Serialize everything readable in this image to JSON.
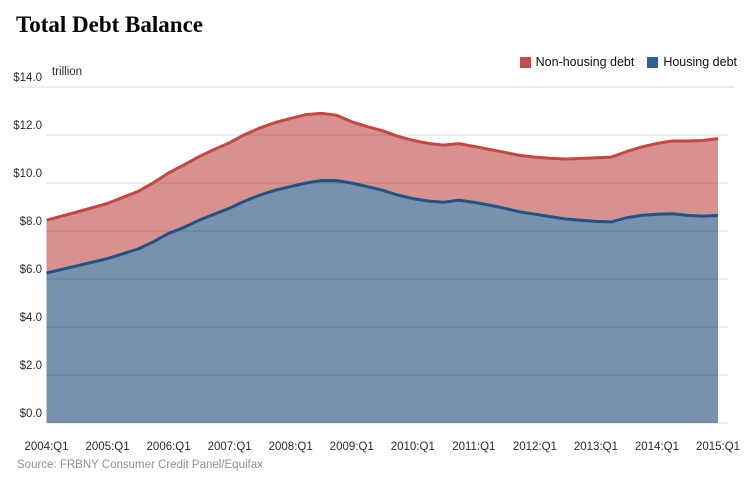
{
  "title": "Total Debt Balance",
  "unit_label": "trillion",
  "source": "Source: FRBNY Consumer Credit Panel/Equifax",
  "legend": [
    {
      "label": "Non-housing debt",
      "color": "#c0504d"
    },
    {
      "label": "Housing debt",
      "color": "#2f5f93"
    }
  ],
  "colors": {
    "nonhousing_fill": "#d9918f",
    "nonhousing_stroke": "#bc4a45",
    "housing_fill": "#7791ae",
    "housing_stroke": "#27507c",
    "gridline": "#d9d9d9"
  },
  "y_axis": {
    "tick_labels": [
      "$14.0",
      "$12.0",
      "$10.0",
      "$8.0",
      "$6.0",
      "$4.0",
      "$2.0",
      "$0.0"
    ],
    "tick_values": [
      14,
      12,
      10,
      8,
      6,
      4,
      2,
      0
    ]
  },
  "x_axis": {
    "tick_labels": [
      "2004:Q1",
      "2005:Q1",
      "2006:Q1",
      "2007:Q1",
      "2008:Q1",
      "2009:Q1",
      "2010:Q1",
      "2011:Q1",
      "2012:Q1",
      "2013:Q1",
      "2014:Q1",
      "2015:Q1"
    ],
    "tick_quarter_index": [
      0,
      4,
      8,
      12,
      16,
      20,
      24,
      28,
      32,
      36,
      40,
      44
    ]
  },
  "chart_data": {
    "type": "area",
    "stacked": true,
    "title": "Total Debt Balance",
    "y_unit": "trillion",
    "ylim": [
      0,
      14
    ],
    "grid": true,
    "legend_position": "top-right",
    "x": [
      "2004:Q1",
      "2004:Q2",
      "2004:Q3",
      "2004:Q4",
      "2005:Q1",
      "2005:Q2",
      "2005:Q3",
      "2005:Q4",
      "2006:Q1",
      "2006:Q2",
      "2006:Q3",
      "2006:Q4",
      "2007:Q1",
      "2007:Q2",
      "2007:Q3",
      "2007:Q4",
      "2008:Q1",
      "2008:Q2",
      "2008:Q3",
      "2008:Q4",
      "2009:Q1",
      "2009:Q2",
      "2009:Q3",
      "2009:Q4",
      "2010:Q1",
      "2010:Q2",
      "2010:Q3",
      "2010:Q4",
      "2011:Q1",
      "2011:Q2",
      "2011:Q3",
      "2011:Q4",
      "2012:Q1",
      "2012:Q2",
      "2012:Q3",
      "2012:Q4",
      "2013:Q1",
      "2013:Q2",
      "2013:Q3",
      "2013:Q4",
      "2014:Q1",
      "2014:Q2",
      "2014:Q3",
      "2014:Q4",
      "2015:Q1"
    ],
    "series": [
      {
        "name": "Housing debt",
        "values": [
          6.25,
          6.4,
          6.55,
          6.7,
          6.85,
          7.05,
          7.25,
          7.55,
          7.9,
          8.15,
          8.45,
          8.7,
          8.95,
          9.25,
          9.5,
          9.7,
          9.85,
          10.0,
          10.1,
          10.1,
          10.0,
          9.85,
          9.7,
          9.5,
          9.35,
          9.25,
          9.2,
          9.28,
          9.2,
          9.08,
          8.95,
          8.8,
          8.7,
          8.6,
          8.5,
          8.45,
          8.4,
          8.38,
          8.55,
          8.65,
          8.7,
          8.72,
          8.65,
          8.62,
          8.65
        ]
      },
      {
        "name": "Non-housing debt",
        "values": [
          2.2,
          2.22,
          2.24,
          2.27,
          2.3,
          2.35,
          2.4,
          2.46,
          2.52,
          2.6,
          2.65,
          2.7,
          2.73,
          2.77,
          2.8,
          2.82,
          2.84,
          2.85,
          2.8,
          2.72,
          2.55,
          2.5,
          2.48,
          2.45,
          2.43,
          2.4,
          2.38,
          2.36,
          2.33,
          2.32,
          2.33,
          2.35,
          2.38,
          2.43,
          2.5,
          2.57,
          2.65,
          2.7,
          2.76,
          2.85,
          2.95,
          3.03,
          3.1,
          3.15,
          3.2
        ]
      }
    ],
    "total": [
      8.45,
      8.62,
      8.79,
      8.97,
      9.15,
      9.4,
      9.65,
      10.01,
      10.42,
      10.75,
      11.1,
      11.4,
      11.68,
      12.02,
      12.3,
      12.52,
      12.69,
      12.85,
      12.9,
      12.82,
      12.55,
      12.35,
      12.18,
      11.95,
      11.78,
      11.65,
      11.58,
      11.64,
      11.53,
      11.4,
      11.28,
      11.15,
      11.08,
      11.03,
      11.0,
      11.02,
      11.05,
      11.08,
      11.31,
      11.5,
      11.65,
      11.75,
      11.75,
      11.77,
      11.85
    ]
  }
}
